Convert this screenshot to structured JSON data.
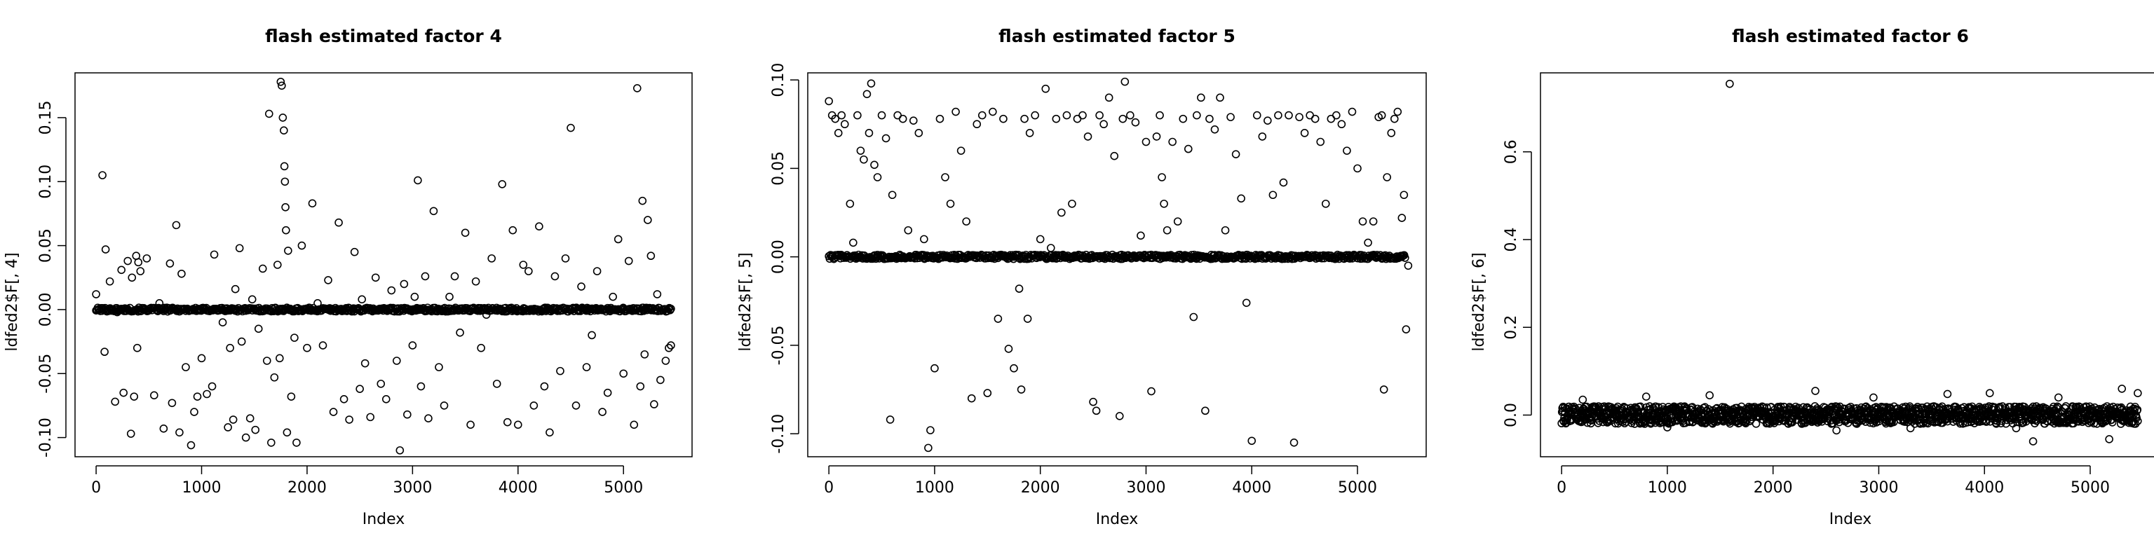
{
  "chart_data": [
    {
      "type": "scatter",
      "title": "flash estimated factor 4",
      "xlabel": "Index",
      "ylabel": "ldfed2$F[, 4]",
      "xlim": [
        -200,
        5650
      ],
      "ylim": [
        -0.115,
        0.185
      ],
      "x_ticks": [
        0,
        1000,
        2000,
        3000,
        4000,
        5000
      ],
      "x_tick_labels": [
        "0",
        "1000",
        "2000",
        "3000",
        "4000",
        "5000"
      ],
      "y_ticks": [
        -0.1,
        -0.05,
        0.0,
        0.05,
        0.1,
        0.15
      ],
      "y_tick_labels": [
        "-0.10",
        "-0.05",
        "0.00",
        "0.05",
        "0.10",
        "0.15"
      ],
      "grid": false,
      "marker": "open-circle",
      "background_band": {
        "x_range": [
          0,
          5450
        ],
        "y_center": 0.0,
        "y_spread": 0.0015
      },
      "points": [
        [
          0,
          0.012
        ],
        [
          60,
          0.105
        ],
        [
          80,
          -0.033
        ],
        [
          90,
          0.047
        ],
        [
          130,
          0.022
        ],
        [
          180,
          -0.072
        ],
        [
          200,
          -0.002
        ],
        [
          240,
          0.031
        ],
        [
          260,
          -0.065
        ],
        [
          300,
          0.038
        ],
        [
          330,
          -0.097
        ],
        [
          340,
          0.025
        ],
        [
          360,
          -0.068
        ],
        [
          380,
          0.042
        ],
        [
          390,
          -0.03
        ],
        [
          400,
          0.037
        ],
        [
          420,
          0.03
        ],
        [
          480,
          0.04
        ],
        [
          550,
          -0.067
        ],
        [
          600,
          0.005
        ],
        [
          640,
          -0.093
        ],
        [
          700,
          0.036
        ],
        [
          720,
          -0.073
        ],
        [
          760,
          0.066
        ],
        [
          790,
          -0.096
        ],
        [
          810,
          0.028
        ],
        [
          850,
          -0.045
        ],
        [
          900,
          -0.106
        ],
        [
          930,
          -0.08
        ],
        [
          960,
          -0.068
        ],
        [
          1000,
          -0.038
        ],
        [
          1050,
          -0.066
        ],
        [
          1100,
          -0.06
        ],
        [
          1120,
          0.043
        ],
        [
          1200,
          -0.01
        ],
        [
          1250,
          -0.092
        ],
        [
          1270,
          -0.03
        ],
        [
          1300,
          -0.086
        ],
        [
          1320,
          0.016
        ],
        [
          1360,
          0.048
        ],
        [
          1380,
          -0.025
        ],
        [
          1420,
          -0.1
        ],
        [
          1460,
          -0.085
        ],
        [
          1480,
          0.008
        ],
        [
          1510,
          -0.094
        ],
        [
          1540,
          -0.015
        ],
        [
          1580,
          0.032
        ],
        [
          1620,
          -0.04
        ],
        [
          1640,
          0.153
        ],
        [
          1660,
          -0.104
        ],
        [
          1690,
          -0.053
        ],
        [
          1720,
          0.035
        ],
        [
          1740,
          -0.038
        ],
        [
          1750,
          0.178
        ],
        [
          1760,
          0.175
        ],
        [
          1770,
          0.15
        ],
        [
          1780,
          0.14
        ],
        [
          1785,
          0.112
        ],
        [
          1790,
          0.1
        ],
        [
          1795,
          0.08
        ],
        [
          1800,
          0.062
        ],
        [
          1810,
          -0.096
        ],
        [
          1820,
          0.046
        ],
        [
          1850,
          -0.068
        ],
        [
          1880,
          -0.022
        ],
        [
          1900,
          -0.104
        ],
        [
          1950,
          0.05
        ],
        [
          2000,
          -0.03
        ],
        [
          2050,
          0.083
        ],
        [
          2100,
          0.005
        ],
        [
          2150,
          -0.028
        ],
        [
          2200,
          0.023
        ],
        [
          2250,
          -0.08
        ],
        [
          2300,
          0.068
        ],
        [
          2350,
          -0.07
        ],
        [
          2400,
          -0.086
        ],
        [
          2450,
          0.045
        ],
        [
          2500,
          -0.062
        ],
        [
          2520,
          0.008
        ],
        [
          2550,
          -0.042
        ],
        [
          2600,
          -0.084
        ],
        [
          2650,
          0.025
        ],
        [
          2700,
          -0.058
        ],
        [
          2750,
          -0.07
        ],
        [
          2800,
          0.015
        ],
        [
          2850,
          -0.04
        ],
        [
          2880,
          -0.11
        ],
        [
          2920,
          0.02
        ],
        [
          2950,
          -0.082
        ],
        [
          3000,
          -0.028
        ],
        [
          3020,
          0.01
        ],
        [
          3050,
          0.101
        ],
        [
          3080,
          -0.06
        ],
        [
          3120,
          0.026
        ],
        [
          3150,
          -0.085
        ],
        [
          3200,
          0.077
        ],
        [
          3250,
          -0.045
        ],
        [
          3300,
          -0.075
        ],
        [
          3350,
          0.01
        ],
        [
          3400,
          0.026
        ],
        [
          3450,
          -0.018
        ],
        [
          3500,
          0.06
        ],
        [
          3550,
          -0.09
        ],
        [
          3600,
          0.022
        ],
        [
          3650,
          -0.03
        ],
        [
          3700,
          -0.004
        ],
        [
          3750,
          0.04
        ],
        [
          3800,
          -0.058
        ],
        [
          3850,
          0.098
        ],
        [
          3900,
          -0.088
        ],
        [
          3950,
          0.062
        ],
        [
          4000,
          -0.09
        ],
        [
          4050,
          0.035
        ],
        [
          4100,
          0.03
        ],
        [
          4150,
          -0.075
        ],
        [
          4200,
          0.065
        ],
        [
          4250,
          -0.06
        ],
        [
          4300,
          -0.096
        ],
        [
          4350,
          0.026
        ],
        [
          4400,
          -0.048
        ],
        [
          4450,
          0.04
        ],
        [
          4500,
          0.142
        ],
        [
          4550,
          -0.075
        ],
        [
          4600,
          0.018
        ],
        [
          4650,
          -0.045
        ],
        [
          4700,
          -0.02
        ],
        [
          4750,
          0.03
        ],
        [
          4800,
          -0.08
        ],
        [
          4850,
          -0.065
        ],
        [
          4900,
          0.01
        ],
        [
          4950,
          0.055
        ],
        [
          5000,
          -0.05
        ],
        [
          5050,
          0.038
        ],
        [
          5100,
          -0.09
        ],
        [
          5130,
          0.173
        ],
        [
          5160,
          -0.06
        ],
        [
          5180,
          0.085
        ],
        [
          5200,
          -0.035
        ],
        [
          5230,
          0.07
        ],
        [
          5260,
          0.042
        ],
        [
          5290,
          -0.074
        ],
        [
          5320,
          0.012
        ],
        [
          5350,
          -0.055
        ],
        [
          5400,
          -0.04
        ],
        [
          5430,
          -0.03
        ],
        [
          5450,
          -0.028
        ]
      ]
    },
    {
      "type": "scatter",
      "title": "flash estimated factor 5",
      "xlabel": "Index",
      "ylabel": "ldfed2$F[, 5]",
      "xlim": [
        -200,
        5650
      ],
      "ylim": [
        -0.113,
        0.104
      ],
      "x_ticks": [
        0,
        1000,
        2000,
        3000,
        4000,
        5000
      ],
      "x_tick_labels": [
        "0",
        "1000",
        "2000",
        "3000",
        "4000",
        "5000"
      ],
      "y_ticks": [
        -0.1,
        -0.05,
        0.0,
        0.05,
        0.1
      ],
      "y_tick_labels": [
        "-0.10",
        "-0.05",
        "0.00",
        "0.05",
        "0.10"
      ],
      "grid": false,
      "marker": "open-circle",
      "background_band": {
        "x_range": [
          0,
          5450
        ],
        "y_center": 0.0,
        "y_spread": 0.0012
      },
      "points": [
        [
          0,
          0.088
        ],
        [
          30,
          0.08
        ],
        [
          60,
          0.078
        ],
        [
          90,
          0.07
        ],
        [
          120,
          0.08
        ],
        [
          150,
          0.075
        ],
        [
          200,
          0.03
        ],
        [
          230,
          0.008
        ],
        [
          270,
          0.08
        ],
        [
          300,
          0.06
        ],
        [
          330,
          0.055
        ],
        [
          360,
          0.092
        ],
        [
          380,
          0.07
        ],
        [
          400,
          0.098
        ],
        [
          430,
          0.052
        ],
        [
          460,
          0.045
        ],
        [
          500,
          0.08
        ],
        [
          540,
          0.067
        ],
        [
          580,
          -0.092
        ],
        [
          600,
          0.035
        ],
        [
          650,
          0.08
        ],
        [
          700,
          0.078
        ],
        [
          750,
          0.015
        ],
        [
          800,
          0.077
        ],
        [
          850,
          0.07
        ],
        [
          900,
          0.01
        ],
        [
          940,
          -0.108
        ],
        [
          960,
          -0.098
        ],
        [
          1000,
          -0.063
        ],
        [
          1050,
          0.078
        ],
        [
          1100,
          0.045
        ],
        [
          1150,
          0.03
        ],
        [
          1200,
          0.082
        ],
        [
          1250,
          0.06
        ],
        [
          1300,
          0.02
        ],
        [
          1350,
          -0.08
        ],
        [
          1400,
          0.075
        ],
        [
          1450,
          0.08
        ],
        [
          1500,
          -0.077
        ],
        [
          1550,
          0.082
        ],
        [
          1600,
          -0.035
        ],
        [
          1650,
          0.078
        ],
        [
          1700,
          -0.052
        ],
        [
          1750,
          -0.063
        ],
        [
          1800,
          -0.018
        ],
        [
          1820,
          -0.075
        ],
        [
          1850,
          0.078
        ],
        [
          1880,
          -0.035
        ],
        [
          1900,
          0.07
        ],
        [
          1950,
          0.08
        ],
        [
          2000,
          0.01
        ],
        [
          2050,
          0.095
        ],
        [
          2100,
          0.005
        ],
        [
          2150,
          0.078
        ],
        [
          2200,
          0.025
        ],
        [
          2250,
          0.08
        ],
        [
          2300,
          0.03
        ],
        [
          2350,
          0.078
        ],
        [
          2400,
          0.08
        ],
        [
          2450,
          0.068
        ],
        [
          2500,
          -0.082
        ],
        [
          2530,
          -0.087
        ],
        [
          2560,
          0.08
        ],
        [
          2600,
          0.075
        ],
        [
          2650,
          0.09
        ],
        [
          2700,
          0.057
        ],
        [
          2750,
          -0.09
        ],
        [
          2780,
          0.078
        ],
        [
          2800,
          0.099
        ],
        [
          2850,
          0.08
        ],
        [
          2900,
          0.076
        ],
        [
          2950,
          0.012
        ],
        [
          3000,
          0.065
        ],
        [
          3050,
          -0.076
        ],
        [
          3100,
          0.068
        ],
        [
          3130,
          0.08
        ],
        [
          3150,
          0.045
        ],
        [
          3170,
          0.03
        ],
        [
          3200,
          0.015
        ],
        [
          3250,
          0.065
        ],
        [
          3300,
          0.02
        ],
        [
          3350,
          0.078
        ],
        [
          3400,
          0.061
        ],
        [
          3450,
          -0.034
        ],
        [
          3480,
          0.08
        ],
        [
          3520,
          0.09
        ],
        [
          3560,
          -0.087
        ],
        [
          3600,
          0.078
        ],
        [
          3650,
          0.072
        ],
        [
          3700,
          0.09
        ],
        [
          3750,
          0.015
        ],
        [
          3800,
          0.079
        ],
        [
          3850,
          0.058
        ],
        [
          3900,
          0.033
        ],
        [
          3950,
          -0.026
        ],
        [
          4000,
          -0.104
        ],
        [
          4050,
          0.08
        ],
        [
          4100,
          0.068
        ],
        [
          4150,
          0.077
        ],
        [
          4200,
          0.035
        ],
        [
          4250,
          0.08
        ],
        [
          4300,
          0.042
        ],
        [
          4350,
          0.08
        ],
        [
          4400,
          -0.105
        ],
        [
          4450,
          0.079
        ],
        [
          4500,
          0.07
        ],
        [
          4550,
          0.08
        ],
        [
          4600,
          0.078
        ],
        [
          4650,
          0.065
        ],
        [
          4700,
          0.03
        ],
        [
          4750,
          0.078
        ],
        [
          4800,
          0.08
        ],
        [
          4850,
          0.075
        ],
        [
          4900,
          0.06
        ],
        [
          4950,
          0.082
        ],
        [
          5000,
          0.05
        ],
        [
          5050,
          0.02
        ],
        [
          5100,
          0.008
        ],
        [
          5150,
          0.02
        ],
        [
          5200,
          0.079
        ],
        [
          5230,
          0.08
        ],
        [
          5250,
          -0.075
        ],
        [
          5280,
          0.045
        ],
        [
          5320,
          0.07
        ],
        [
          5350,
          0.078
        ],
        [
          5380,
          0.082
        ],
        [
          5420,
          0.022
        ],
        [
          5440,
          0.035
        ],
        [
          5460,
          -0.041
        ],
        [
          5480,
          -0.005
        ]
      ]
    },
    {
      "type": "scatter",
      "title": "flash estimated factor 6",
      "xlabel": "Index",
      "ylabel": "ldfed2$F[, 6]",
      "xlim": [
        -200,
        5650
      ],
      "ylim": [
        -0.095,
        0.78
      ],
      "x_ticks": [
        0,
        1000,
        2000,
        3000,
        4000,
        5000
      ],
      "x_tick_labels": [
        "0",
        "1000",
        "2000",
        "3000",
        "4000",
        "5000"
      ],
      "y_ticks": [
        0.0,
        0.2,
        0.4,
        0.6
      ],
      "y_tick_labels": [
        "0.0",
        "0.2",
        "0.4",
        "0.6"
      ],
      "grid": false,
      "marker": "open-circle",
      "background_band": {
        "x_range": [
          0,
          5450
        ],
        "y_center": 0.0,
        "y_spread": 0.02
      },
      "points": [
        [
          1590,
          0.755
        ],
        [
          4460,
          -0.06
        ],
        [
          5180,
          -0.055
        ],
        [
          2400,
          0.055
        ],
        [
          5300,
          0.06
        ],
        [
          4050,
          0.05
        ],
        [
          3650,
          0.048
        ],
        [
          1400,
          0.045
        ],
        [
          800,
          0.042
        ],
        [
          2950,
          0.04
        ],
        [
          4700,
          0.04
        ],
        [
          200,
          0.035
        ],
        [
          5450,
          0.05
        ],
        [
          2600,
          -0.035
        ],
        [
          3300,
          -0.03
        ],
        [
          1000,
          -0.028
        ],
        [
          4300,
          -0.03
        ]
      ]
    }
  ]
}
